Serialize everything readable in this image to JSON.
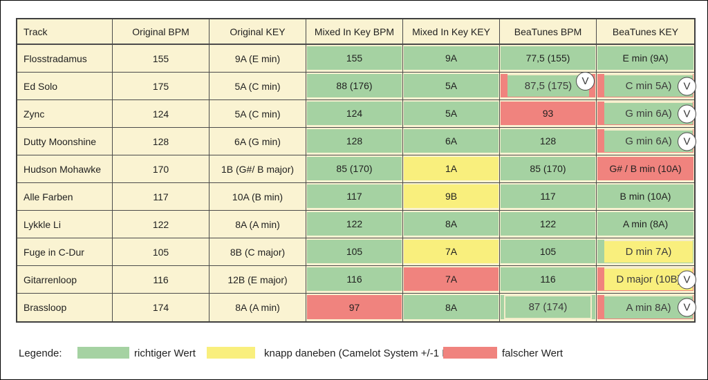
{
  "chart_data": {
    "type": "table",
    "columns": [
      "Track",
      "Original BPM",
      "Original KEY",
      "Mixed In Key BPM",
      "Mixed In Key KEY",
      "BeaTunes BPM",
      "BeaTunes KEY"
    ],
    "rows": [
      {
        "cells": [
          {
            "t": "Flosstradamus"
          },
          {
            "t": "155"
          },
          {
            "t": "9A (E min)"
          },
          {
            "t": "155",
            "c": "green"
          },
          {
            "t": "9A",
            "c": "green"
          },
          {
            "t": "77,5 (155)",
            "c": "green"
          },
          {
            "t": "E min (9A)",
            "c": "green"
          }
        ]
      },
      {
        "cells": [
          {
            "t": "Ed Solo"
          },
          {
            "t": "175"
          },
          {
            "t": "5A (C min)"
          },
          {
            "t": "88 (176)",
            "c": "green"
          },
          {
            "t": "5A",
            "c": "green"
          },
          {
            "t": "87,5 (175)",
            "c": "red",
            "o": "green",
            "v": "in"
          },
          {
            "t": "C min 5A)",
            "c": "red",
            "o": "green",
            "v": "out"
          }
        ]
      },
      {
        "cells": [
          {
            "t": "Zync"
          },
          {
            "t": "124"
          },
          {
            "t": "5A (C min)"
          },
          {
            "t": "124",
            "c": "green"
          },
          {
            "t": "5A",
            "c": "green"
          },
          {
            "t": "93",
            "c": "red"
          },
          {
            "t": "G min 6A)",
            "c": "red",
            "o": "green",
            "v": "out"
          }
        ]
      },
      {
        "cells": [
          {
            "t": "Dutty Moonshine"
          },
          {
            "t": "128"
          },
          {
            "t": "6A (G min)"
          },
          {
            "t": "128",
            "c": "green"
          },
          {
            "t": "6A",
            "c": "green"
          },
          {
            "t": "128",
            "c": "green"
          },
          {
            "t": "G min 6A)",
            "c": "red",
            "o": "green",
            "v": "out"
          }
        ]
      },
      {
        "cells": [
          {
            "t": "Hudson Mohawke"
          },
          {
            "t": "170"
          },
          {
            "t": "1B (G#/ B major)"
          },
          {
            "t": "85 (170)",
            "c": "green"
          },
          {
            "t": "1A",
            "c": "yellow"
          },
          {
            "t": "85 (170)",
            "c": "green"
          },
          {
            "t": "G# / B min (10A)",
            "c": "red"
          }
        ]
      },
      {
        "cells": [
          {
            "t": "Alle Farben"
          },
          {
            "t": "117"
          },
          {
            "t": "10A (B min)"
          },
          {
            "t": "117",
            "c": "green"
          },
          {
            "t": "9B",
            "c": "yellow"
          },
          {
            "t": "117",
            "c": "green"
          },
          {
            "t": "B min (10A)",
            "c": "green"
          }
        ]
      },
      {
        "cells": [
          {
            "t": "Lykkle Li"
          },
          {
            "t": "122"
          },
          {
            "t": "8A (A min)"
          },
          {
            "t": "122",
            "c": "green"
          },
          {
            "t": "8A",
            "c": "green"
          },
          {
            "t": "122",
            "c": "green"
          },
          {
            "t": "A min (8A)",
            "c": "green"
          }
        ]
      },
      {
        "cells": [
          {
            "t": "Fuge in C-Dur"
          },
          {
            "t": "105"
          },
          {
            "t": "8B (C major)"
          },
          {
            "t": "105",
            "c": "green"
          },
          {
            "t": "7A",
            "c": "yellow"
          },
          {
            "t": "105",
            "c": "green"
          },
          {
            "t": "D min 7A)",
            "c": "green",
            "o": "yellow"
          }
        ]
      },
      {
        "cells": [
          {
            "t": "Gitarrenloop"
          },
          {
            "t": "116"
          },
          {
            "t": "12B (E major)"
          },
          {
            "t": "116",
            "c": "green"
          },
          {
            "t": "7A",
            "c": "red"
          },
          {
            "t": "116",
            "c": "green"
          },
          {
            "t": "D major (10B)",
            "c": "red",
            "o": "yellow",
            "v": "out"
          }
        ]
      },
      {
        "cells": [
          {
            "t": "Brassloop"
          },
          {
            "t": "174"
          },
          {
            "t": "8A (A min)"
          },
          {
            "t": "97",
            "c": "red"
          },
          {
            "t": "8A",
            "c": "green"
          },
          {
            "t": "87 (174)",
            "c": "green",
            "o": "green"
          },
          {
            "t": "A min 8A)",
            "c": "red",
            "o": "green",
            "v": "out"
          }
        ]
      }
    ],
    "badge_label": "V",
    "legend": {
      "label": "Legende:",
      "items": [
        {
          "status": "correct",
          "color_key": "green",
          "text": "richtiger Wert"
        },
        {
          "status": "near",
          "color_key": "yellow",
          "text": "knapp daneben (Camelot System +/-1 Feld)"
        },
        {
          "status": "wrong",
          "color_key": "red",
          "text": "falscher Wert"
        }
      ]
    },
    "colors": {
      "green": "#A5D2A2",
      "yellow": "#F9EF7D",
      "red": "#F0837E",
      "cream": "#FAF3D2"
    }
  }
}
